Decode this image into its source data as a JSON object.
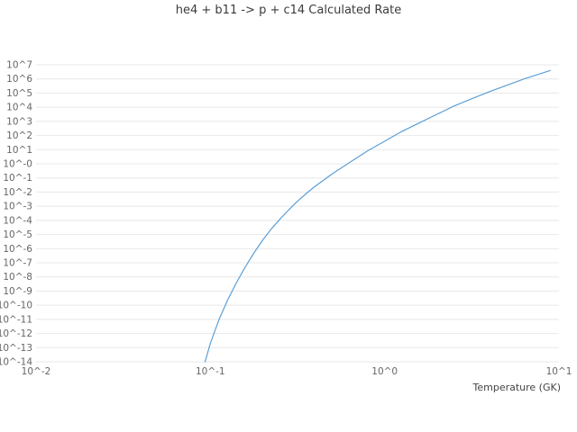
{
  "chart_data": {
    "type": "line",
    "title": "he4 + b11 -> p + c14 Calculated Rate",
    "xlabel": "Temperature (GK)",
    "ylabel": "",
    "x_scale": "log10",
    "y_scale": "log10",
    "xlim_log10": [
      -2,
      1
    ],
    "ylim_log10": [
      -14,
      7
    ],
    "x_ticks": [
      "10^-2",
      "10^-1",
      "10^0",
      "10^1"
    ],
    "y_ticks": [
      "10^7",
      "10^6",
      "10^5",
      "10^4",
      "10^3",
      "10^2",
      "10^1",
      "10^-0",
      "10^-1",
      "10^-2",
      "10^-3",
      "10^-4",
      "10^-5",
      "10^-6",
      "10^-7",
      "10^-8",
      "10^-9",
      "10^-10",
      "10^-11",
      "10^-12",
      "10^-13",
      "10^-14"
    ],
    "grid": "horizontal",
    "legend": "none",
    "line_color": "#5c9fd6",
    "grid_color": "#e8e8e8",
    "series": [
      {
        "name": "calculated rate",
        "x_log10": [
          -1.03,
          -1.0,
          -0.95,
          -0.9,
          -0.85,
          -0.8,
          -0.75,
          -0.7,
          -0.65,
          -0.6,
          -0.55,
          -0.5,
          -0.45,
          -0.4,
          -0.35,
          -0.3,
          -0.25,
          -0.2,
          -0.15,
          -0.1,
          -0.05,
          0.0,
          0.1,
          0.2,
          0.3,
          0.4,
          0.5,
          0.6,
          0.7,
          0.8,
          0.9,
          0.95
        ],
        "y_log10": [
          -14.0,
          -12.7,
          -11.0,
          -9.6,
          -8.4,
          -7.3,
          -6.3,
          -5.4,
          -4.6,
          -3.9,
          -3.25,
          -2.65,
          -2.1,
          -1.6,
          -1.15,
          -0.7,
          -0.3,
          0.1,
          0.5,
          0.9,
          1.25,
          1.6,
          2.3,
          2.9,
          3.5,
          4.1,
          4.6,
          5.1,
          5.55,
          6.0,
          6.4,
          6.6
        ]
      }
    ]
  }
}
